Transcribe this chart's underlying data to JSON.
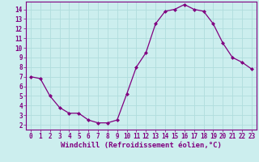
{
  "x": [
    0,
    1,
    2,
    3,
    4,
    5,
    6,
    7,
    8,
    9,
    10,
    11,
    12,
    13,
    14,
    15,
    16,
    17,
    18,
    19,
    20,
    21,
    22,
    23
  ],
  "y": [
    7.0,
    6.8,
    5.0,
    3.8,
    3.2,
    3.2,
    2.5,
    2.2,
    2.2,
    2.5,
    5.2,
    8.0,
    9.5,
    12.5,
    13.8,
    14.0,
    14.5,
    14.0,
    13.8,
    12.5,
    10.5,
    9.0,
    8.5,
    7.8
  ],
  "line_color": "#800080",
  "marker": "D",
  "marker_size": 2,
  "bg_color": "#cceeee",
  "grid_color": "#b0dddd",
  "xlabel": "Windchill (Refroidissement éolien,°C)",
  "xlim": [
    -0.5,
    23.5
  ],
  "ylim": [
    1.5,
    14.8
  ],
  "yticks": [
    2,
    3,
    4,
    5,
    6,
    7,
    8,
    9,
    10,
    11,
    12,
    13,
    14
  ],
  "xticks": [
    0,
    1,
    2,
    3,
    4,
    5,
    6,
    7,
    8,
    9,
    10,
    11,
    12,
    13,
    14,
    15,
    16,
    17,
    18,
    19,
    20,
    21,
    22,
    23
  ],
  "label_color": "#800080",
  "spine_color": "#800080",
  "tick_color": "#800080",
  "font_size": 5.5,
  "xlabel_fontsize": 6.5
}
